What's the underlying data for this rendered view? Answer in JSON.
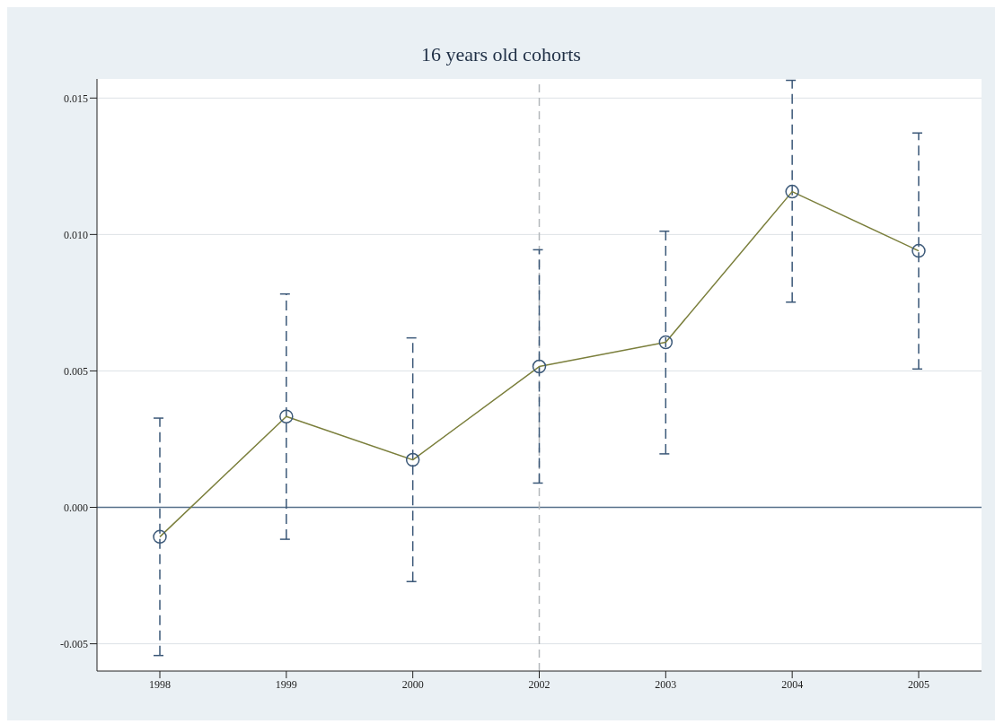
{
  "chart_data": {
    "type": "line",
    "title": "16 years old cohorts",
    "categories": [
      "1998",
      "1999",
      "2000",
      "2002",
      "2003",
      "2004",
      "2005"
    ],
    "series": [
      {
        "color": "#7b7f3c",
        "values": [
          -0.00108,
          0.00333,
          0.00174,
          0.00516,
          0.00605,
          0.01157,
          0.0094
        ],
        "errors": [
          [
            -0.00543,
            0.00327
          ],
          [
            -0.00117,
            0.00782
          ],
          [
            -0.00272,
            0.00621
          ],
          [
            0.00089,
            0.00944
          ],
          [
            0.00196,
            0.01012
          ],
          [
            0.00752,
            0.01565
          ],
          [
            0.00507,
            0.01372
          ]
        ]
      }
    ],
    "ylim": [
      -0.006,
      0.0157
    ],
    "yticks": [
      {
        "value": -0.005,
        "label": "-0.005"
      },
      {
        "value": 0,
        "label": "0.000"
      },
      {
        "value": 0.005,
        "label": "0.005"
      },
      {
        "value": 0.01,
        "label": "0.010"
      },
      {
        "value": 0.015,
        "label": "0.015"
      }
    ],
    "grid": "y",
    "marker": "circle",
    "line_style": "solid",
    "ref_lines": [
      {
        "axis": "y",
        "value": 0,
        "color": "#56708a",
        "line_style": "solid"
      },
      {
        "axis": "x",
        "value": "2002",
        "color": "#b4b8bc",
        "line_style": "dashed"
      }
    ]
  }
}
